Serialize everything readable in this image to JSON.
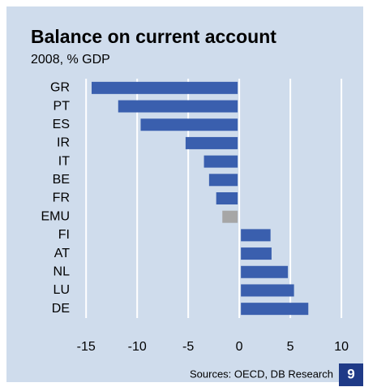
{
  "chart_data": {
    "type": "barh",
    "title": "Balance on current account",
    "subtitle": "2008, % GDP",
    "categories": [
      "GR",
      "PT",
      "ES",
      "IR",
      "IT",
      "BE",
      "FR",
      "EMU",
      "FI",
      "AT",
      "NL",
      "LU",
      "DE"
    ],
    "values": [
      -14.3,
      -11.7,
      -9.5,
      -5.1,
      -3.3,
      -2.8,
      -2.1,
      -1.5,
      2.9,
      3.0,
      4.6,
      5.2,
      6.6
    ],
    "colors": [
      "#3a5fae",
      "#3a5fae",
      "#3a5fae",
      "#3a5fae",
      "#3a5fae",
      "#3a5fae",
      "#3a5fae",
      "#a6a6a6",
      "#3a5fae",
      "#3a5fae",
      "#3a5fae",
      "#3a5fae",
      "#3a5fae"
    ],
    "xlim": [
      -17,
      11.5
    ],
    "xticks": [
      -15,
      -10,
      -5,
      0,
      5,
      10
    ],
    "grid": true,
    "source": "Sources: OECD, DB Research",
    "figure_number": "9"
  }
}
